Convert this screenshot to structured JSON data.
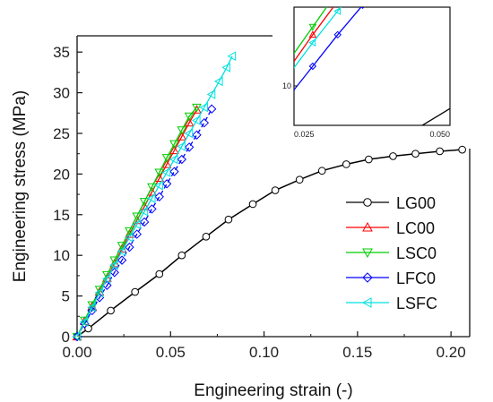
{
  "chart_data": {
    "type": "line",
    "title": "",
    "xlabel": "Engineering strain (-)",
    "ylabel": "Engineering stress (MPa)",
    "xlim": [
      0.0,
      0.21
    ],
    "ylim": [
      0,
      37
    ],
    "x_ticks": [
      "0.00",
      "0.05",
      "0.10",
      "0.15",
      "0.20"
    ],
    "y_ticks": [
      "0",
      "5",
      "10",
      "15",
      "20",
      "25",
      "30",
      "35"
    ],
    "grid": false,
    "legend_placement": "right",
    "series": [
      {
        "name": "LG00",
        "color": "#000000",
        "marker": "circle",
        "x": [
          0,
          0.006,
          0.018,
          0.031,
          0.044,
          0.056,
          0.069,
          0.081,
          0.094,
          0.106,
          0.119,
          0.131,
          0.144,
          0.156,
          0.169,
          0.181,
          0.194,
          0.206
        ],
        "y": [
          0,
          1.0,
          3.2,
          5.5,
          7.7,
          10.0,
          12.3,
          14.4,
          16.3,
          18.0,
          19.3,
          20.4,
          21.2,
          21.8,
          22.2,
          22.5,
          22.8,
          23.0
        ]
      },
      {
        "name": "LC00",
        "color": "#ff0000",
        "marker": "triangle-up",
        "x": [
          0,
          0.004,
          0.008,
          0.012,
          0.016,
          0.02,
          0.024,
          0.028,
          0.032,
          0.036,
          0.04,
          0.044,
          0.048,
          0.052,
          0.056,
          0.06,
          0.064
        ],
        "y": [
          0,
          1.9,
          3.7,
          5.5,
          7.2,
          9.0,
          10.8,
          12.6,
          14.3,
          16.0,
          17.8,
          19.5,
          21.2,
          22.9,
          24.6,
          26.3,
          27.9
        ]
      },
      {
        "name": "LSC0",
        "color": "#00cc00",
        "marker": "triangle-down",
        "x": [
          0,
          0.004,
          0.008,
          0.012,
          0.016,
          0.02,
          0.024,
          0.028,
          0.032,
          0.036,
          0.04,
          0.044,
          0.048,
          0.052,
          0.056,
          0.06,
          0.064
        ],
        "y": [
          0,
          2.0,
          3.9,
          5.8,
          7.6,
          9.4,
          11.2,
          13.0,
          14.8,
          16.6,
          18.4,
          20.2,
          22.0,
          23.7,
          25.4,
          27.1,
          28.2
        ]
      },
      {
        "name": "LFC0",
        "color": "#0000ff",
        "marker": "diamond",
        "x": [
          0,
          0.004,
          0.008,
          0.012,
          0.016,
          0.02,
          0.024,
          0.028,
          0.032,
          0.036,
          0.04,
          0.044,
          0.048,
          0.052,
          0.056,
          0.06,
          0.064,
          0.068,
          0.072
        ],
        "y": [
          0,
          1.6,
          3.2,
          4.8,
          6.3,
          7.9,
          9.4,
          11.0,
          12.6,
          14.1,
          15.7,
          17.2,
          18.8,
          20.3,
          21.8,
          23.3,
          24.8,
          26.3,
          28.0
        ]
      },
      {
        "name": "LSFC",
        "color": "#00e0e0",
        "marker": "triangle-left",
        "x": [
          0,
          0.004,
          0.008,
          0.012,
          0.016,
          0.02,
          0.024,
          0.028,
          0.032,
          0.036,
          0.04,
          0.044,
          0.048,
          0.052,
          0.056,
          0.06,
          0.064,
          0.068,
          0.072,
          0.076,
          0.08,
          0.083
        ],
        "y": [
          0,
          1.8,
          3.6,
          5.4,
          7.1,
          8.8,
          10.5,
          12.2,
          13.8,
          15.4,
          17.0,
          18.6,
          20.2,
          21.8,
          23.4,
          25.0,
          26.6,
          28.2,
          29.8,
          31.4,
          33.1,
          34.5
        ]
      }
    ],
    "inset": {
      "xlim": [
        0.025,
        0.05
      ],
      "ylim": [
        8,
        14
      ],
      "x_ticks": [
        "0.025",
        "0.050"
      ],
      "y_ticks": [
        "10"
      ]
    }
  }
}
